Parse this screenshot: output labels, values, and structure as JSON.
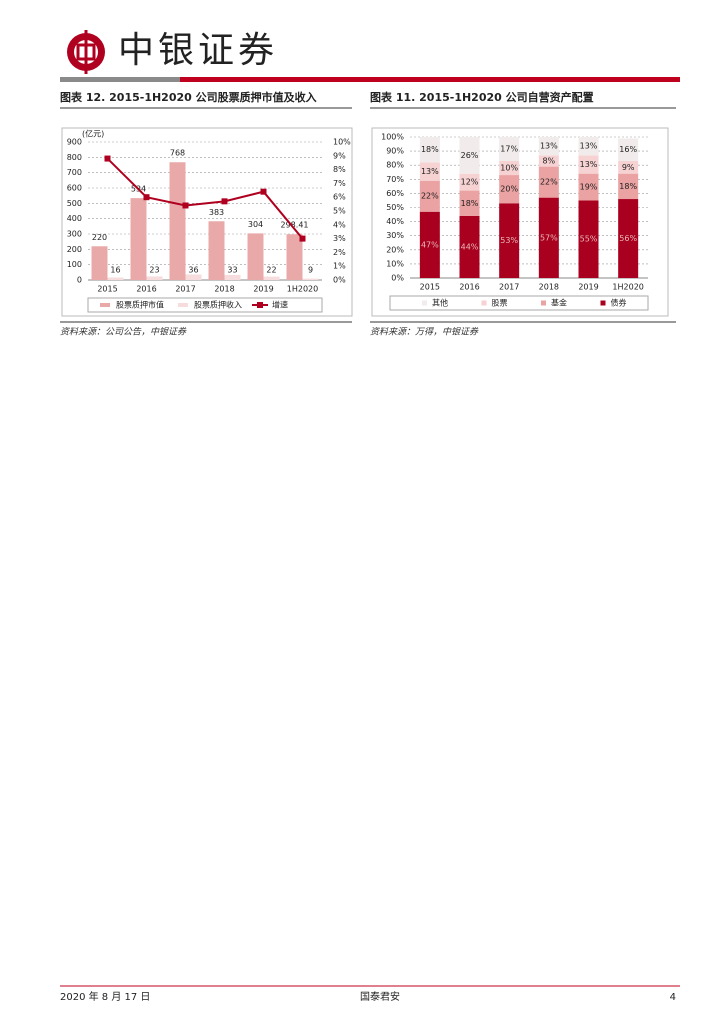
{
  "header": {
    "brand": "中银证券"
  },
  "chart_data": [
    {
      "type": "bar_line",
      "title": "图表 12. 2015-1H2020 公司股票质押市值及收入",
      "y_label": "(亿元)",
      "categories": [
        "2015",
        "2016",
        "2017",
        "2018",
        "2019",
        "1H2020"
      ],
      "series": [
        {
          "name": "股票质押市值",
          "color": "#e9a9a9",
          "values": [
            220,
            534,
            768,
            383,
            304,
            298.41
          ]
        },
        {
          "name": "股票质押收入",
          "color": "#f6dcdc",
          "values": [
            16,
            23,
            36,
            33,
            22,
            9
          ]
        },
        {
          "name": "增速",
          "type": "line",
          "axis": "y2",
          "color": "#b0001f",
          "values": [
            8.8,
            6.0,
            5.4,
            5.7,
            6.4,
            3.0
          ]
        }
      ],
      "ylim": [
        0,
        900
      ],
      "yticks": [
        0,
        100,
        200,
        300,
        400,
        500,
        600,
        700,
        800,
        900
      ],
      "y2lim": [
        0,
        10
      ],
      "y2ticks": [
        {
          "value": 0,
          "label": "0%"
        },
        {
          "value": 1,
          "label": "1%"
        },
        {
          "value": 2,
          "label": "2%"
        },
        {
          "value": 3,
          "label": "3%"
        },
        {
          "value": 4,
          "label": "4%"
        },
        {
          "value": 5,
          "label": "5%"
        },
        {
          "value": 6,
          "label": "6%"
        },
        {
          "value": 7,
          "label": "7%"
        },
        {
          "value": 8,
          "label": "8%"
        },
        {
          "value": 9,
          "label": "9%"
        },
        {
          "value": 10,
          "label": "10%"
        }
      ],
      "grid": true
    },
    {
      "type": "stacked_bar",
      "title": "图表 11. 2015-1H2020 公司自营资产配置",
      "categories": [
        "2015",
        "2016",
        "2017",
        "2018",
        "2019",
        "1H2020"
      ],
      "series": [
        {
          "name": "债券",
          "color": "#a8001e",
          "values": [
            47,
            44,
            53,
            57,
            55,
            56
          ],
          "value_labels": [
            "47%",
            "44%",
            "53%",
            "57%",
            "55%",
            "56%"
          ]
        },
        {
          "name": "基金",
          "color": "#eaa2a2",
          "values": [
            22,
            18,
            20,
            22,
            19,
            18
          ],
          "value_labels": [
            "22%",
            "18%",
            "20%",
            "22%",
            "19%",
            "18%"
          ]
        },
        {
          "name": "股票",
          "color": "#f6d2d2",
          "values": [
            13,
            12,
            10,
            8,
            13,
            9
          ],
          "value_labels": [
            "13%",
            "12%",
            "10%",
            "8%",
            "13%",
            "9%"
          ]
        },
        {
          "name": "其他",
          "color": "#f1ebeb",
          "values": [
            18,
            26,
            17,
            13,
            13,
            16
          ],
          "value_labels": [
            "18%",
            "26%",
            "17%",
            "13%",
            "13%",
            "16%"
          ]
        }
      ],
      "ylim": [
        0,
        100
      ],
      "yticks": [
        {
          "value": 0,
          "label": "0%"
        },
        {
          "value": 10,
          "label": "10%"
        },
        {
          "value": 20,
          "label": "20%"
        },
        {
          "value": 30,
          "label": "30%"
        },
        {
          "value": 40,
          "label": "40%"
        },
        {
          "value": 50,
          "label": "50%"
        },
        {
          "value": 60,
          "label": "60%"
        },
        {
          "value": 70,
          "label": "70%"
        },
        {
          "value": 80,
          "label": "80%"
        },
        {
          "value": 90,
          "label": "90%"
        },
        {
          "value": 100,
          "label": "100%"
        }
      ],
      "grid": true
    }
  ],
  "sources": [
    "资料来源：公司公告，中银证券",
    "资料来源：万得，中银证券"
  ],
  "footer": {
    "date": "2020 年 8 月 17 日",
    "center": "国泰君安",
    "page": "4"
  }
}
